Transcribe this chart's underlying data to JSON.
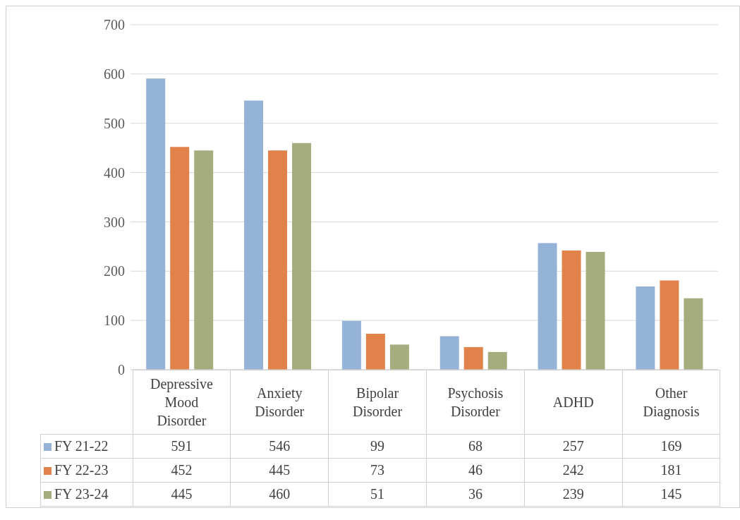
{
  "chart_data": {
    "type": "bar",
    "categories": [
      "Depressive Mood Disorder",
      "Anxiety Disorder",
      "Bipolar Disorder",
      "Psychosis Disorder",
      "ADHD",
      "Other Diagnosis"
    ],
    "series": [
      {
        "name": "FY 21-22",
        "color": "#95b3d7",
        "values": [
          591,
          546,
          99,
          68,
          257,
          169
        ]
      },
      {
        "name": "FY 22-23",
        "color": "#e0824a",
        "values": [
          452,
          445,
          73,
          46,
          242,
          181
        ]
      },
      {
        "name": "FY 23-24",
        "color": "#a5ac7d",
        "values": [
          445,
          460,
          51,
          36,
          239,
          145
        ]
      }
    ],
    "ylim": [
      0,
      700
    ],
    "yticks": [
      0,
      100,
      200,
      300,
      400,
      500,
      600,
      700
    ],
    "grid": "y",
    "legend": "bottom",
    "data_labels": true
  }
}
